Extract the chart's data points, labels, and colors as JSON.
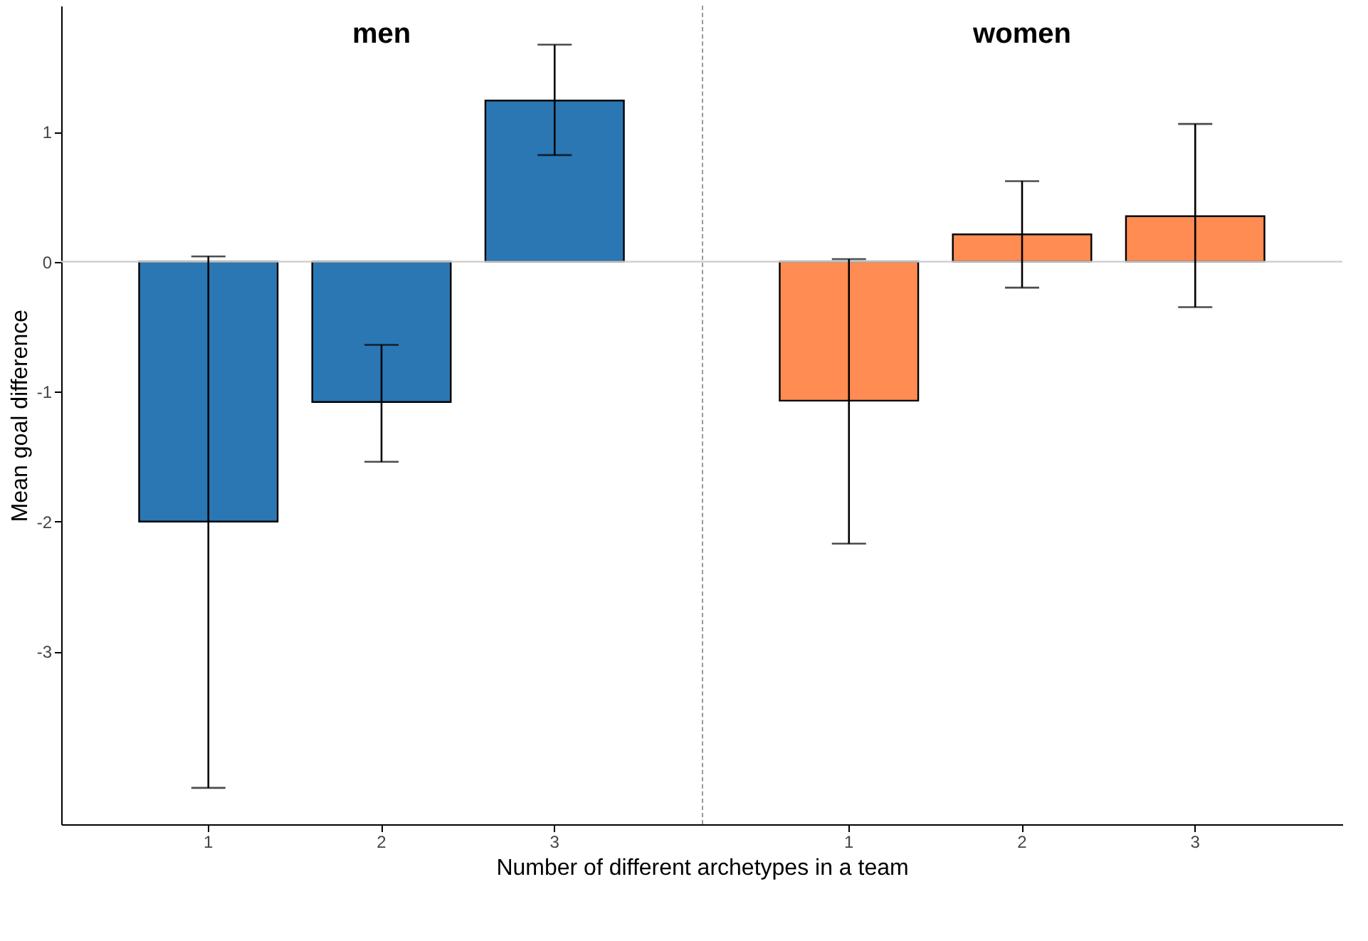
{
  "chart_data": [
    {
      "type": "bar",
      "title": "men",
      "xlabel": "Number of different archetypes in a team",
      "ylabel": "Mean goal difference",
      "categories": [
        "1",
        "2",
        "3"
      ],
      "color": "#2a77b4",
      "values": [
        -2.0,
        -1.08,
        1.24
      ],
      "errors": [
        [
          -4.05,
          0.04
        ],
        [
          -1.54,
          -0.64
        ],
        [
          0.82,
          1.67
        ]
      ],
      "ylim": [
        -4.33,
        1.97
      ],
      "yticks": [
        -3,
        -2,
        -1,
        0,
        1
      ],
      "ref_lines": [
        {
          "axis": "y",
          "value": 0,
          "color": "#cccccc",
          "line_style": "solid"
        }
      ]
    },
    {
      "type": "bar",
      "title": "women",
      "categories": [
        "1",
        "2",
        "3"
      ],
      "color": "#ff8c52",
      "values": [
        -1.07,
        0.21,
        0.35
      ],
      "errors": [
        [
          -2.17,
          0.02
        ],
        [
          -0.2,
          0.62
        ],
        [
          -0.35,
          1.06
        ]
      ],
      "ylim": [
        -4.33,
        1.97
      ],
      "yticks": [
        -3,
        -2,
        -1,
        0,
        1
      ],
      "tick_labels": "x",
      "ref_lines": [
        {
          "axis": "y",
          "value": 0,
          "color": "#cccccc",
          "line_style": "solid"
        }
      ]
    }
  ]
}
